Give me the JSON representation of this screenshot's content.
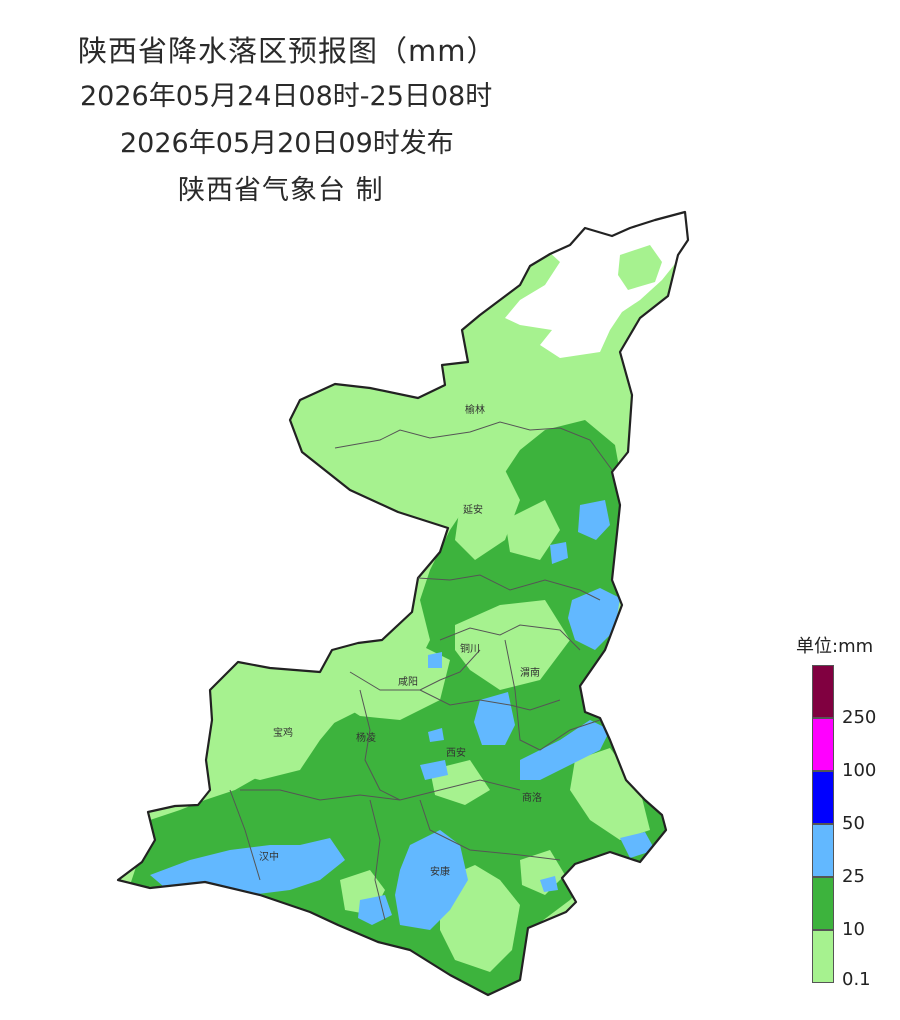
{
  "header": {
    "title": "陕西省降水落区预报图（mm）",
    "valid_period": "2026年05月24日08时-25日08时",
    "issued": "2026年05月20日09时发布",
    "producer": "陕西省气象台 制"
  },
  "cities": [
    "榆林",
    "延安",
    "铜川",
    "咸阳",
    "渭南",
    "宝鸡",
    "杨凌",
    "西安",
    "商洛",
    "汉中",
    "安康"
  ],
  "legend": {
    "title": "单位:mm",
    "bins": [
      {
        "color": "#800040",
        "label": ""
      },
      {
        "color": "#ff00ff",
        "label": "250"
      },
      {
        "color": "#0000ff",
        "label": "100"
      },
      {
        "color": "#62b8ff",
        "label": "50"
      },
      {
        "color": "#3db33d",
        "label": "25"
      },
      {
        "color": "#a6f28f",
        "label": "10"
      }
    ],
    "bottom_label": "0.1"
  },
  "colors": {
    "light_rain": "#a6f28f",
    "moderate_rain": "#3db33d",
    "heavy_rain": "#62b8ff",
    "no_rain": "#ffffff",
    "boundary": "#333333"
  }
}
